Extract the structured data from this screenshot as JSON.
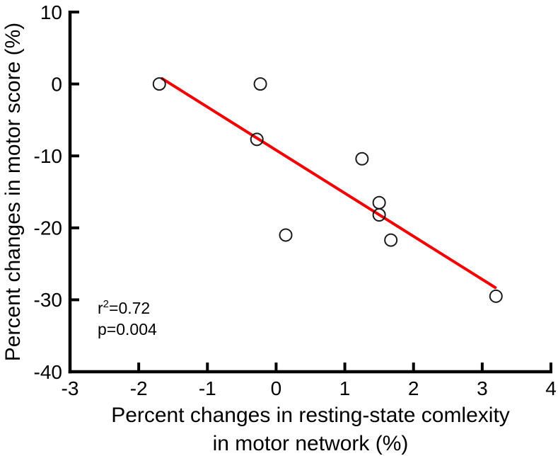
{
  "figure": {
    "background": "#ffffff",
    "text_color": "#000000"
  },
  "chart_data": {
    "type": "scatter",
    "title": "",
    "xlabel_line1": "Percent changes in resting-state comlexity",
    "xlabel_line2": "in motor network (%)",
    "ylabel": "Percent changes in motor score (%)",
    "xlim": [
      -3,
      4
    ],
    "ylim": [
      -40,
      10
    ],
    "x_ticks": [
      "-3",
      "-2",
      "-1",
      "0",
      "1",
      "2",
      "3",
      "4"
    ],
    "y_ticks": [
      "10",
      "0",
      "-10",
      "-20",
      "-30",
      "-40"
    ],
    "grid": false,
    "legend": null,
    "points": [
      {
        "x": -1.7,
        "y": 0.0
      },
      {
        "x": -0.23,
        "y": 0.0
      },
      {
        "x": -0.28,
        "y": -7.7
      },
      {
        "x": 1.25,
        "y": -10.4
      },
      {
        "x": 1.5,
        "y": -16.5
      },
      {
        "x": 1.5,
        "y": -18.2
      },
      {
        "x": 0.14,
        "y": -21.0
      },
      {
        "x": 1.67,
        "y": -21.7
      },
      {
        "x": 3.2,
        "y": -29.5
      }
    ],
    "marker": {
      "shape": "open-circle",
      "radius": 8.5,
      "stroke": "#1a1a1a",
      "stroke_width": 2,
      "fill": "none"
    },
    "regression_line": {
      "x1": -1.66,
      "y1": 0.75,
      "x2": 3.19,
      "y2": -28.3,
      "color": "#f40000",
      "width": 4
    },
    "axis_color": "#000000",
    "annotation": {
      "r2_base": "r",
      "r2_sup": "2",
      "r2_rest": "=0.72",
      "p_value": "p=0.004"
    }
  }
}
